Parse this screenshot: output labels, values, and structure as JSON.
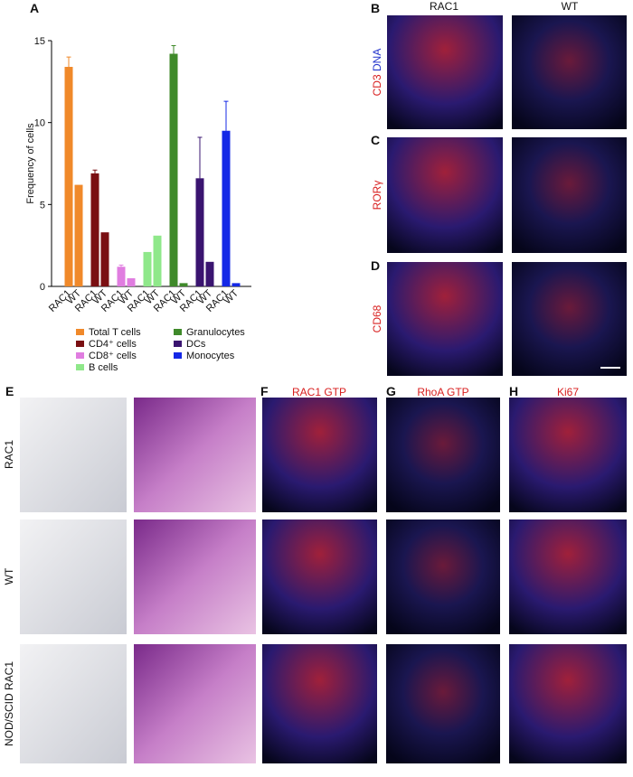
{
  "chart_data": {
    "type": "bar",
    "panel": "A",
    "y_label": "Frequency of cells",
    "categories": [
      "RAC1",
      "WT",
      "RAC1",
      "WT",
      "RAC1",
      "WT",
      "RAC1",
      "WT",
      "RAC1",
      "WT",
      "RAC1",
      "WT",
      "RAC1",
      "WT"
    ],
    "ylim": [
      0,
      15
    ],
    "yticks": [
      0,
      5,
      10,
      15
    ],
    "series": [
      {
        "name": "Total T cells",
        "color": "#f0892a",
        "values": [
          13.4,
          6.2,
          null,
          null,
          null,
          null,
          null,
          null,
          null,
          null,
          null,
          null,
          null,
          null
        ],
        "errors": [
          0.6,
          null,
          null,
          null,
          null,
          null,
          null,
          null,
          null,
          null,
          null,
          null,
          null,
          null
        ]
      },
      {
        "name": "CD4⁺ cells",
        "color": "#7a0f12",
        "values": [
          null,
          null,
          6.9,
          3.3,
          null,
          null,
          null,
          null,
          null,
          null,
          null,
          null,
          null,
          null
        ],
        "errors": [
          null,
          null,
          0.2,
          null,
          null,
          null,
          null,
          null,
          null,
          null,
          null,
          null,
          null,
          null
        ]
      },
      {
        "name": "CD8⁺ cells",
        "color": "#e07de0",
        "values": [
          null,
          null,
          null,
          null,
          1.2,
          0.5,
          null,
          null,
          null,
          null,
          null,
          null,
          null,
          null
        ],
        "errors": [
          null,
          null,
          null,
          null,
          0.1,
          null,
          null,
          null,
          null,
          null,
          null,
          null,
          null,
          null
        ]
      },
      {
        "name": "B cells",
        "color": "#8fe88a",
        "values": [
          null,
          null,
          null,
          null,
          null,
          null,
          2.1,
          3.1,
          null,
          null,
          null,
          null,
          null,
          null
        ],
        "errors": [
          null,
          null,
          null,
          null,
          null,
          null,
          null,
          null,
          null,
          null,
          null,
          null,
          null,
          null
        ]
      },
      {
        "name": "Granulocytes",
        "color": "#3f8a2a",
        "values": [
          null,
          null,
          null,
          null,
          null,
          null,
          null,
          null,
          14.2,
          0.2,
          null,
          null,
          null,
          null
        ],
        "errors": [
          null,
          null,
          null,
          null,
          null,
          null,
          null,
          null,
          0.5,
          null,
          null,
          null,
          null,
          null
        ]
      },
      {
        "name": "DCs",
        "color": "#3a1470",
        "values": [
          null,
          null,
          null,
          null,
          null,
          null,
          null,
          null,
          null,
          null,
          6.6,
          1.5,
          null,
          null
        ],
        "errors": [
          null,
          null,
          null,
          null,
          null,
          null,
          null,
          null,
          null,
          null,
          2.5,
          null,
          null,
          null
        ]
      },
      {
        "name": "Monocytes",
        "color": "#1428e6",
        "values": [
          null,
          null,
          null,
          null,
          null,
          null,
          null,
          null,
          null,
          null,
          null,
          null,
          9.5,
          0.2
        ],
        "errors": [
          null,
          null,
          null,
          null,
          null,
          null,
          null,
          null,
          null,
          null,
          null,
          null,
          1.8,
          null
        ]
      }
    ]
  },
  "figure": {
    "panels": [
      "B",
      "C",
      "D",
      "E",
      "F",
      "G",
      "H"
    ],
    "columns_bd": [
      "RAC1",
      "WT"
    ],
    "rows_bd": [
      [
        "CD3",
        "DNA"
      ],
      [
        "RORγ"
      ],
      [
        "CD68"
      ]
    ],
    "columns_fh": [
      "RAC1 GTP",
      "RhoA GTP",
      "Ki67"
    ],
    "rows_e": [
      "RAC1",
      "WT",
      "NOD/SCID RAC1"
    ]
  }
}
